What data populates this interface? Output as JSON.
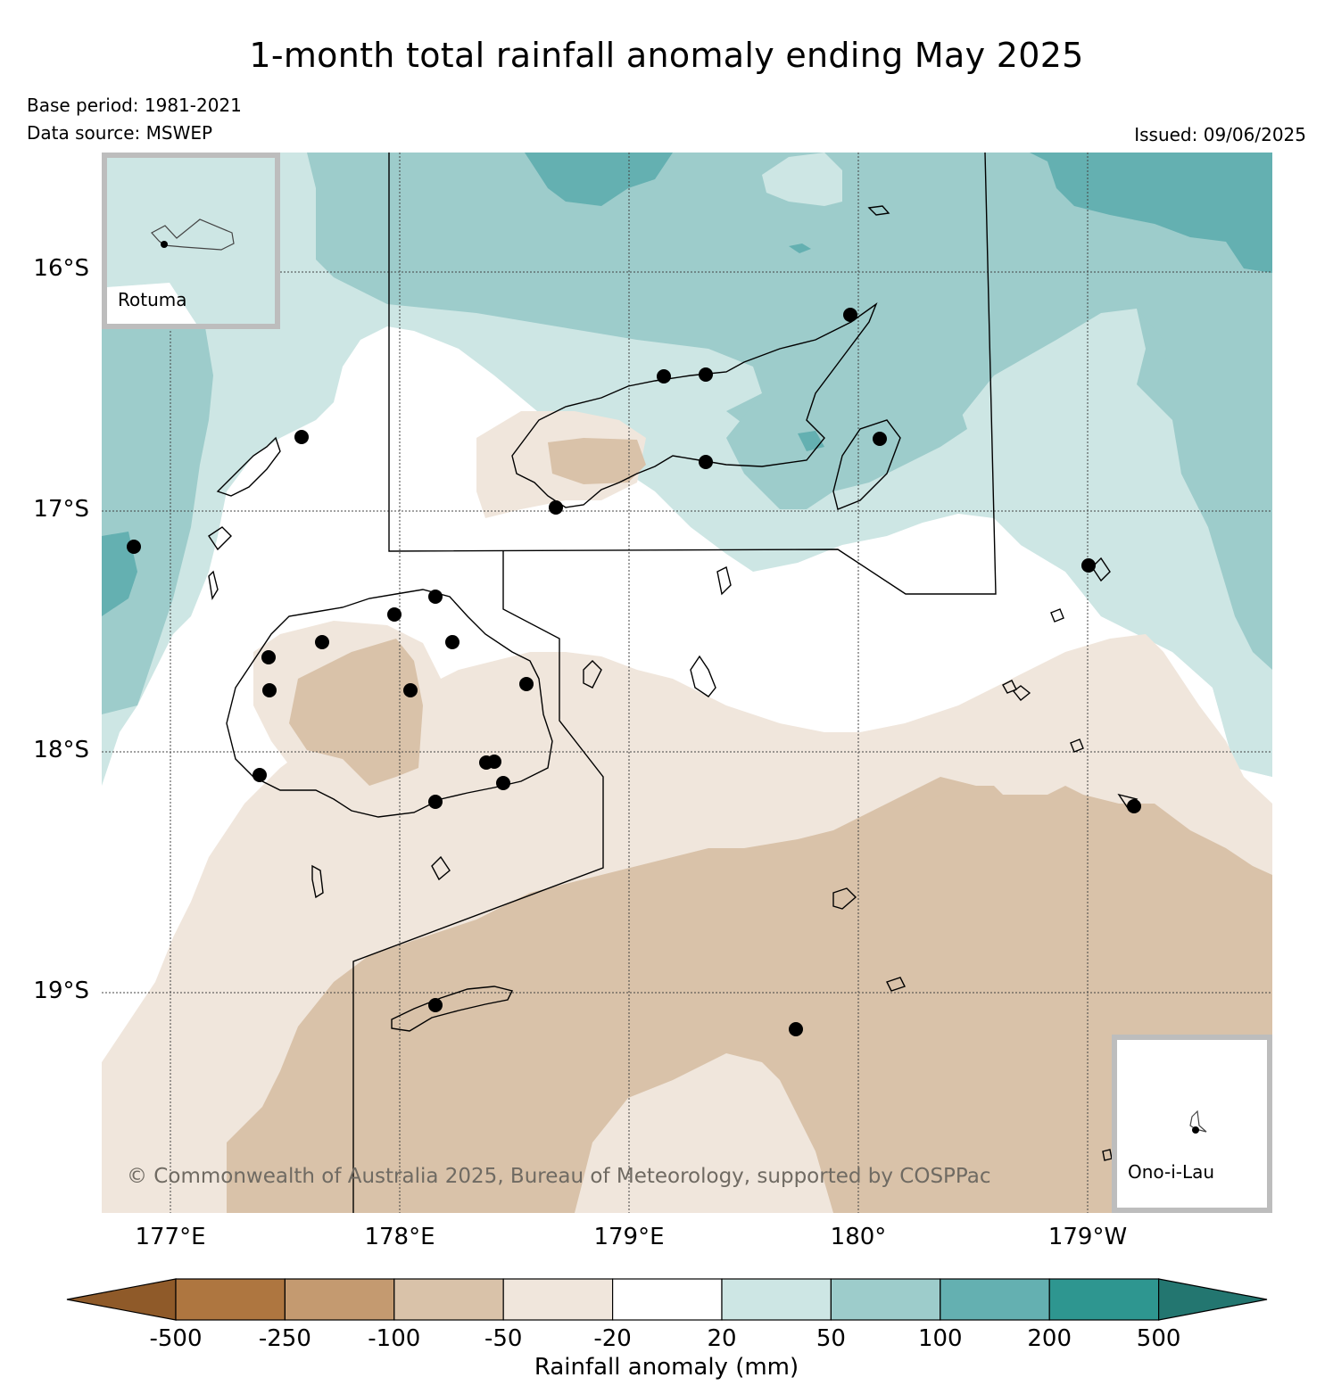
{
  "title": "1-month total rainfall anomaly ending May 2025",
  "base_period": "Base period: 1981-2021",
  "data_source": "Data source: MSWEP",
  "issued": "Issued: 09/06/2025",
  "copyright": "© Commonwealth of Australia 2025, Bureau of Meteorology, supported by COSPPac",
  "lat_labels": [
    "16°S",
    "17°S",
    "18°S",
    "19°S"
  ],
  "lon_labels": [
    "177°E",
    "178°E",
    "179°E",
    "180°",
    "179°W"
  ],
  "insets": {
    "rotuma": "Rotuma",
    "ono": "Ono-i-Lau"
  },
  "colorbar": {
    "label": "Rainfall anomaly (mm)",
    "ticks": [
      "-500",
      "-250",
      "-100",
      "-50",
      "-20",
      "20",
      "50",
      "100",
      "200",
      "500"
    ],
    "colors": [
      "#8f5a29",
      "#ae7640",
      "#c49a70",
      "#d9c2a9",
      "#f0e6dc",
      "#ffffff",
      "#cde6e4",
      "#9dcccb",
      "#64b0b1",
      "#2e9690",
      "#237670"
    ]
  },
  "colors": {
    "ocean_low": "#cde6e4",
    "ocean_mid": "#9dcccb",
    "ocean_high": "#64b0b1",
    "dry_light": "#f0e6dc",
    "dry_mid": "#d9c2a9"
  }
}
